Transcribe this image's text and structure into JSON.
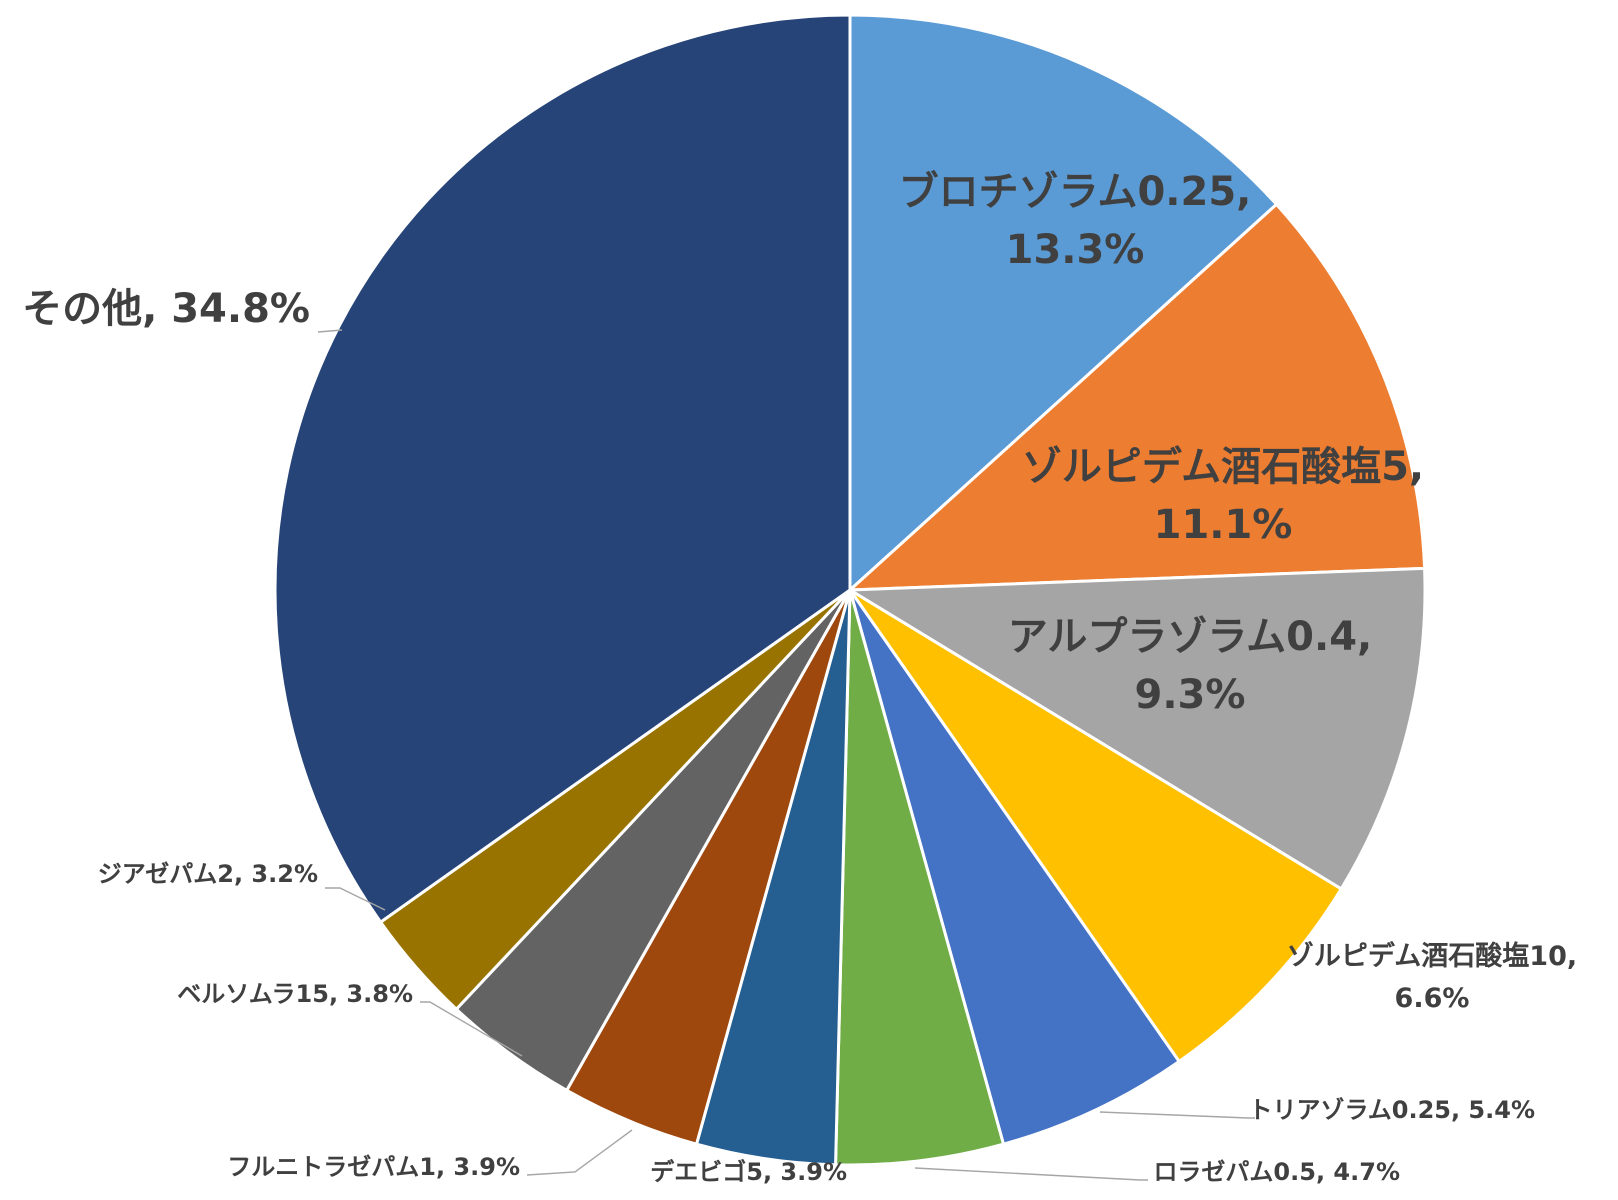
{
  "chart_data": {
    "type": "pie",
    "start": "top",
    "direction": "clockwise",
    "slices": [
      {
        "label": "ブロチゾラム0.25",
        "percent": 13.3,
        "value": 13.3,
        "display": [
          "ブロチゾラム0.25,",
          "13.3%"
        ],
        "color": "#5b9bd5",
        "label_placement": "inside"
      },
      {
        "label": "ゾルピデム酒石酸塩5",
        "percent": 11.1,
        "value": 11.1,
        "display": [
          "ゾルピデム酒石酸塩5,",
          "11.1%"
        ],
        "color": "#ed7d31",
        "label_placement": "inside"
      },
      {
        "label": "アルプラゾラム0.4",
        "percent": 9.3,
        "value": 9.3,
        "display": [
          "アルプラゾラム0.4,",
          "9.3%"
        ],
        "color": "#a5a5a5",
        "label_placement": "inside"
      },
      {
        "label": "ゾルピデム酒石酸塩10",
        "percent": 6.6,
        "value": 6.6,
        "display": [
          "ゾルピデム酒石酸塩10,",
          "6.6%"
        ],
        "color": "#ffc000",
        "label_placement": "outside"
      },
      {
        "label": "トリアゾラム0.25",
        "percent": 5.4,
        "value": 5.4,
        "display": [
          "トリアゾラム0.25, 5.4%"
        ],
        "color": "#4472c4",
        "label_placement": "outside"
      },
      {
        "label": "ロラゼパム0.5",
        "percent": 4.7,
        "value": 4.7,
        "display": [
          "ロラゼパム0.5, 4.7%"
        ],
        "color": "#70ad47",
        "label_placement": "outside"
      },
      {
        "label": "デエビゴ5",
        "percent": 3.9,
        "value": 3.9,
        "display": [
          "デエビゴ5, 3.9%"
        ],
        "color": "#255e91",
        "label_placement": "outside"
      },
      {
        "label": "フルニトラゼパム1",
        "percent": 3.9,
        "value": 3.9,
        "display": [
          "フルニトラゼパム1, 3.9%"
        ],
        "color": "#9e480e",
        "label_placement": "outside"
      },
      {
        "label": "ベルソムラ15",
        "percent": 3.8,
        "value": 3.8,
        "display": [
          "ベルソムラ15, 3.8%"
        ],
        "color": "#636363",
        "label_placement": "outside"
      },
      {
        "label": "ジアゼパム2",
        "percent": 3.2,
        "value": 3.2,
        "display": [
          "ジアゼパム2, 3.2%"
        ],
        "color": "#997300",
        "label_placement": "outside"
      },
      {
        "label": "その他",
        "percent": 34.8,
        "value": 34.8,
        "display": [
          "その他, 34.8%"
        ],
        "color": "#264478",
        "label_placement": "outside"
      }
    ]
  }
}
